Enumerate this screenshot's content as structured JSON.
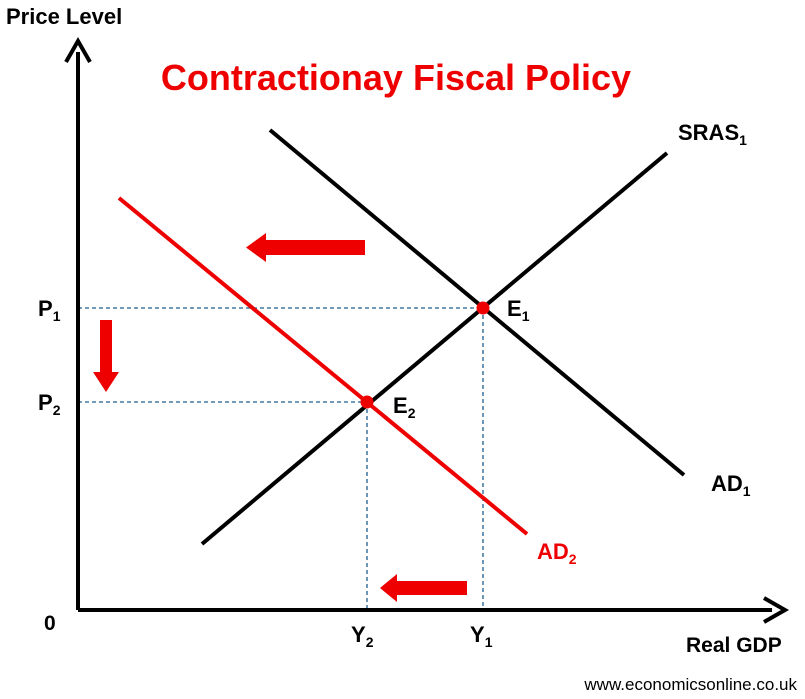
{
  "title": "Contractionay Fiscal Policy",
  "axes": {
    "y_label": "Price Level",
    "x_label": "Real GDP",
    "origin": "0"
  },
  "levels": {
    "p1": {
      "main": "P",
      "sub": "1"
    },
    "p2": {
      "main": "P",
      "sub": "2"
    },
    "y1": {
      "main": "Y",
      "sub": "1"
    },
    "y2": {
      "main": "Y",
      "sub": "2"
    }
  },
  "curves": {
    "sras": {
      "main": "SRAS",
      "sub": "1"
    },
    "ad1": {
      "main": "AD",
      "sub": "1"
    },
    "ad2": {
      "main": "AD",
      "sub": "2"
    }
  },
  "points": {
    "e1": {
      "main": "E",
      "sub": "1"
    },
    "e2": {
      "main": "E",
      "sub": "2"
    }
  },
  "source": "www.economicsonline.co.uk",
  "colors": {
    "accent": "#ee0000",
    "axis": "#000000",
    "guide": "#1f5f8f"
  }
}
